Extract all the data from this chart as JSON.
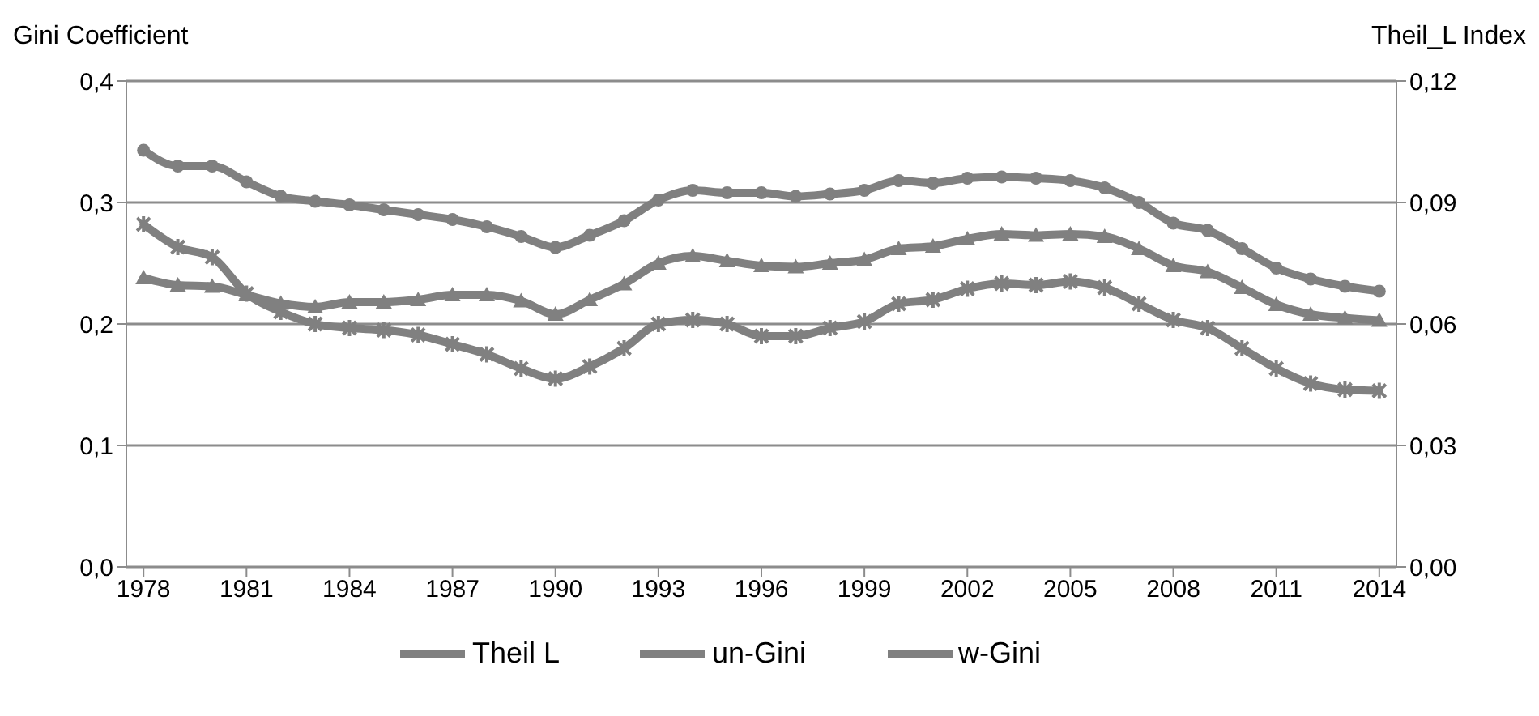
{
  "chart_data": {
    "type": "line",
    "ylabel": "Gini  Coefficient",
    "y2label": "Theil_L  Index",
    "x": [
      1978,
      1979,
      1980,
      1981,
      1982,
      1983,
      1984,
      1985,
      1986,
      1987,
      1988,
      1989,
      1990,
      1991,
      1992,
      1993,
      1994,
      1995,
      1996,
      1997,
      1998,
      1999,
      2000,
      2001,
      2002,
      2003,
      2004,
      2005,
      2006,
      2007,
      2008,
      2009,
      2010,
      2011,
      2012,
      2013,
      2014
    ],
    "series": [
      {
        "name": "un-Gini",
        "color": "#808080",
        "marker": "circle",
        "values": [
          0.343,
          0.33,
          0.33,
          0.317,
          0.305,
          0.301,
          0.298,
          0.294,
          0.29,
          0.286,
          0.28,
          0.272,
          0.263,
          0.273,
          0.285,
          0.302,
          0.31,
          0.308,
          0.308,
          0.305,
          0.307,
          0.31,
          0.318,
          0.316,
          0.32,
          0.321,
          0.32,
          0.318,
          0.312,
          0.3,
          0.283,
          0.277,
          0.262,
          0.246,
          0.237,
          0.231,
          0.227
        ]
      },
      {
        "name": "w-Gini",
        "color": "#808080",
        "marker": "triangle",
        "values": [
          0.238,
          0.232,
          0.231,
          0.224,
          0.217,
          0.214,
          0.218,
          0.218,
          0.22,
          0.224,
          0.224,
          0.219,
          0.208,
          0.22,
          0.233,
          0.25,
          0.256,
          0.252,
          0.248,
          0.247,
          0.25,
          0.253,
          0.262,
          0.264,
          0.27,
          0.274,
          0.273,
          0.274,
          0.272,
          0.262,
          0.248,
          0.243,
          0.23,
          0.216,
          0.208,
          0.205,
          0.203
        ]
      },
      {
        "name": "Theil L",
        "color": "#808080",
        "marker": "cross",
        "axis": "y2",
        "values": [
          0.0846,
          0.079,
          0.0765,
          0.0675,
          0.063,
          0.06,
          0.059,
          0.0585,
          0.0573,
          0.055,
          0.0525,
          0.049,
          0.0465,
          0.0495,
          0.054,
          0.06,
          0.061,
          0.06,
          0.057,
          0.057,
          0.059,
          0.0606,
          0.065,
          0.066,
          0.0687,
          0.07,
          0.0696,
          0.0705,
          0.069,
          0.065,
          0.061,
          0.059,
          0.054,
          0.049,
          0.0453,
          0.0438,
          0.0435
        ]
      }
    ],
    "xlim": [
      1977.5,
      2014.5
    ],
    "xticks": [
      1978,
      1981,
      1984,
      1987,
      1990,
      1993,
      1996,
      1999,
      2002,
      2005,
      2008,
      2011,
      2014
    ],
    "ylim": [
      0,
      0.4
    ],
    "yticks": [
      {
        "value": 0,
        "label": "0,0"
      },
      {
        "value": 0.1,
        "label": "0,1"
      },
      {
        "value": 0.2,
        "label": "0,2"
      },
      {
        "value": 0.3,
        "label": "0,3"
      },
      {
        "value": 0.4,
        "label": "0,4"
      }
    ],
    "y2lim": [
      0,
      0.12
    ],
    "y2ticks": [
      {
        "value": 0,
        "label": "0,00"
      },
      {
        "value": 0.03,
        "label": "0,03"
      },
      {
        "value": 0.06,
        "label": "0,06"
      },
      {
        "value": 0.09,
        "label": "0,09"
      },
      {
        "value": 0.12,
        "label": "0,12"
      }
    ],
    "grid": "y",
    "legend": "bottom",
    "line_style": "solid"
  }
}
